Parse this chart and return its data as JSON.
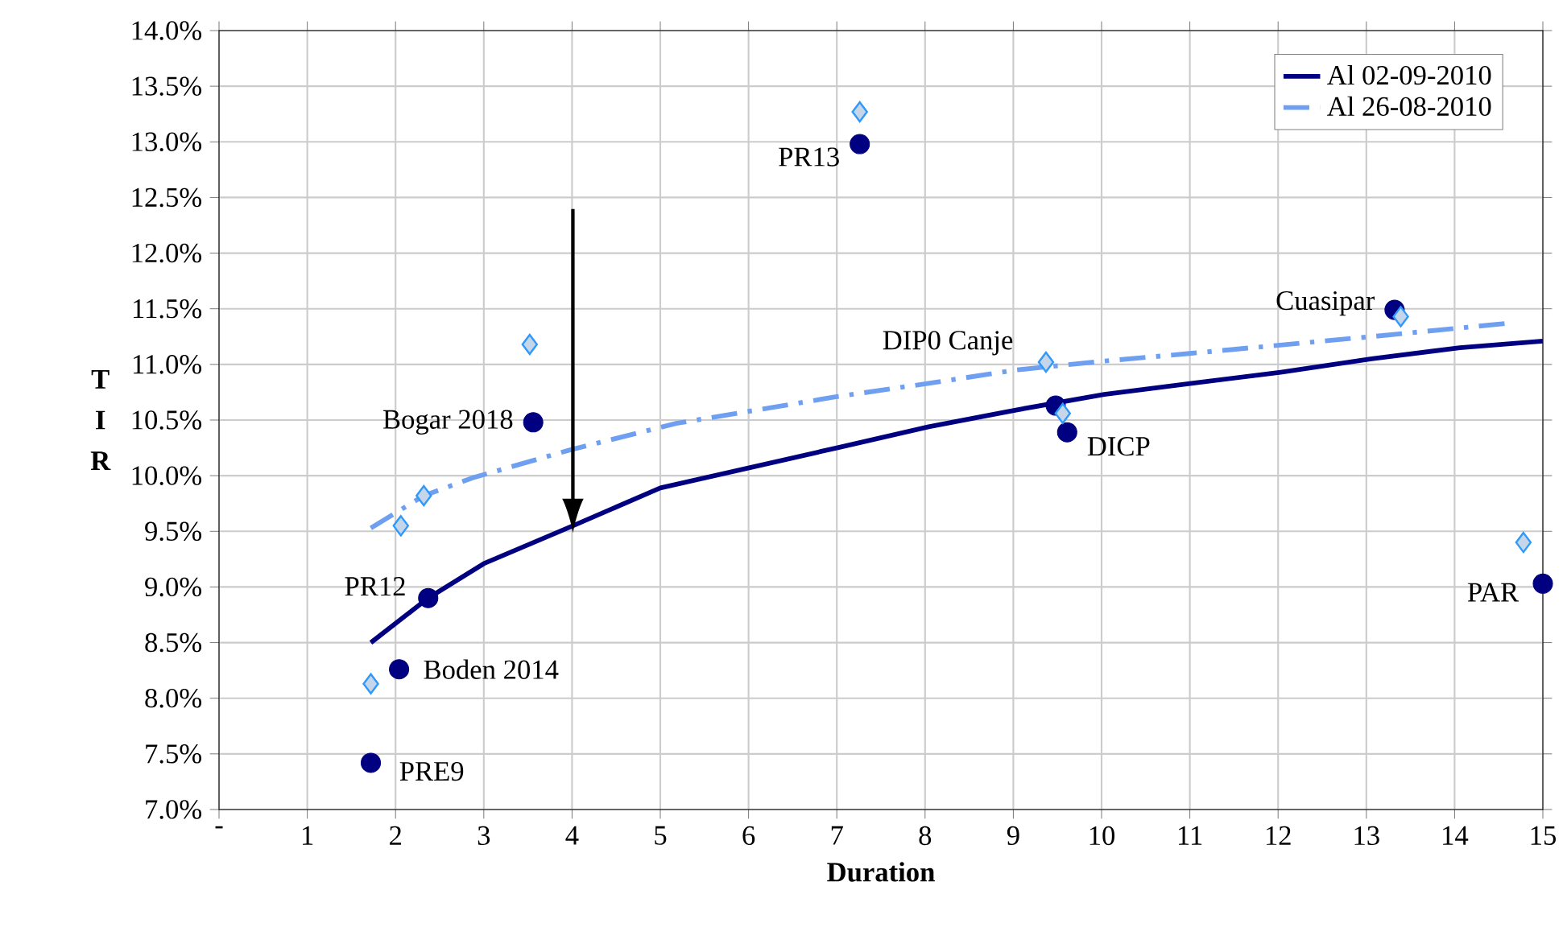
{
  "chart_data": {
    "type": "scatter",
    "xlabel": "Duration",
    "ylabel": "T I R",
    "xlim": [
      0,
      15
    ],
    "ylim": [
      7,
      14
    ],
    "xticks": [
      {
        "value": 0,
        "label": "-"
      },
      1,
      2,
      3,
      4,
      5,
      6,
      7,
      8,
      9,
      10,
      11,
      12,
      13,
      14,
      15
    ],
    "yticks": [
      {
        "value": 7,
        "label": "7.0%"
      },
      {
        "value": 7.5,
        "label": "7.5%"
      },
      {
        "value": 8,
        "label": "8.0%"
      },
      {
        "value": 8.5,
        "label": "8.5%"
      },
      {
        "value": 9,
        "label": "9.0%"
      },
      {
        "value": 9.5,
        "label": "9.5%"
      },
      {
        "value": 10,
        "label": "10.0%"
      },
      {
        "value": 10.5,
        "label": "10.5%"
      },
      {
        "value": 11,
        "label": "11.0%"
      },
      {
        "value": 11.5,
        "label": "11.5%"
      },
      {
        "value": 12,
        "label": "12.0%"
      },
      {
        "value": 12.5,
        "label": "12.5%"
      },
      {
        "value": 13,
        "label": "13.0%"
      },
      {
        "value": 13.5,
        "label": "13.5%"
      },
      {
        "value": 14,
        "label": "14.0%"
      }
    ],
    "grid": true,
    "legend": "top right",
    "series": [
      {
        "name": "Al 02-09-2010",
        "type": "line",
        "color": "#000080",
        "marker": "none",
        "line_style": "solid",
        "x": [
          1.72,
          2.37,
          3.0,
          4.01,
          5.0,
          7.0,
          8.04,
          9.03,
          10.03,
          11.02,
          12.03,
          13.06,
          14.06,
          15
        ],
        "values": [
          8.5,
          8.9,
          9.21,
          9.55,
          9.89,
          10.25,
          10.44,
          10.59,
          10.73,
          10.83,
          10.93,
          11.05,
          11.15,
          11.21
        ]
      },
      {
        "name": "Al 26-08-2010",
        "type": "line",
        "color": "#6f9ff0",
        "marker": "none",
        "line_style": "dashed",
        "x": [
          1.72,
          2.32,
          2.87,
          3.97,
          5.18,
          7.0,
          8.04,
          9.03,
          10.03,
          11.02,
          13.06,
          14.61
        ],
        "values": [
          9.53,
          9.82,
          9.98,
          10.23,
          10.47,
          10.71,
          10.83,
          10.95,
          11.03,
          11.1,
          11.25,
          11.37
        ]
      },
      {
        "color": "#000080",
        "marker": "circle",
        "x": [
          1.72,
          2.04,
          2.37,
          3.56,
          7.26,
          9.48,
          9.61,
          13.32,
          15
        ],
        "values": [
          7.42,
          8.26,
          8.9,
          10.48,
          12.98,
          10.63,
          10.39,
          11.49,
          9.03
        ]
      },
      {
        "color": "#c5d5ea",
        "marker": "diamond",
        "x": [
          1.72,
          2.06,
          2.32,
          3.52,
          7.26,
          9.37,
          9.56,
          13.39,
          14.78
        ],
        "values": [
          8.13,
          9.55,
          9.82,
          11.18,
          13.27,
          11.02,
          10.56,
          11.43,
          9.4
        ]
      }
    ],
    "annotations": [
      {
        "text": "PR13",
        "x": 7.26,
        "y": 12.98
      },
      {
        "text": "Bogar 2018",
        "x": 3.56,
        "y": 10.48
      },
      {
        "text": "DIP0 Canje",
        "x": 9.37,
        "y": 11.02
      },
      {
        "text": "Cuasipar",
        "x": 13.32,
        "y": 11.49
      },
      {
        "text": "PR12",
        "x": 2.37,
        "y": 8.9
      },
      {
        "text": "DICP",
        "x": 9.61,
        "y": 10.39
      },
      {
        "text": "PAR",
        "x": 15,
        "y": 9.03
      },
      {
        "text": "Boden 2014",
        "x": 2.04,
        "y": 8.26
      },
      {
        "text": "PRE9",
        "x": 1.72,
        "y": 7.42
      }
    ]
  }
}
